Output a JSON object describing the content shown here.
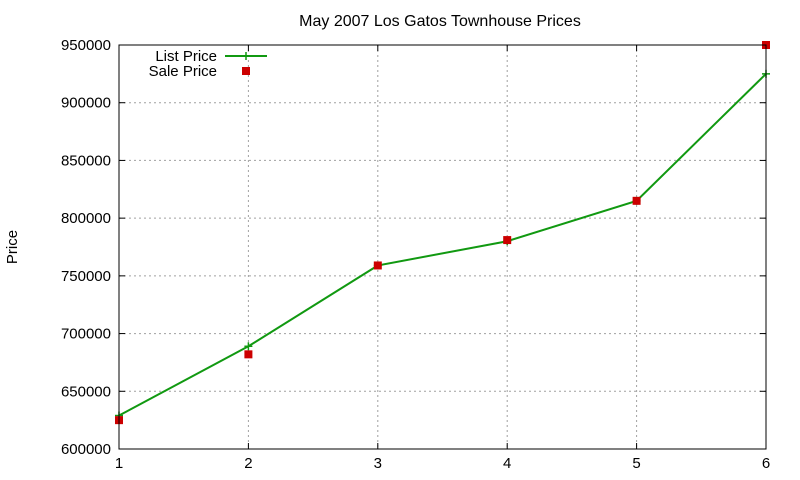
{
  "chart_data": {
    "type": "line",
    "title": "May 2007 Los Gatos Townhouse Prices",
    "xlabel": "",
    "ylabel": "Price",
    "x": [
      1,
      2,
      3,
      4,
      5,
      6
    ],
    "xlim": [
      1,
      6
    ],
    "ylim": [
      600000,
      950000
    ],
    "x_ticks": [
      "1",
      "2",
      "3",
      "4",
      "5",
      "6"
    ],
    "y_ticks": [
      "600000",
      "650000",
      "700000",
      "750000",
      "800000",
      "850000",
      "900000",
      "950000"
    ],
    "grid": true,
    "legend_position": "top-left",
    "series": [
      {
        "name": "List Price",
        "style": "line-plus-markers",
        "color": "#119911",
        "values": [
          629000,
          689000,
          759000,
          780000,
          815000,
          925000
        ]
      },
      {
        "name": "Sale Price",
        "style": "square-markers",
        "color": "#cc0000",
        "values": [
          625000,
          682000,
          759000,
          781000,
          815000,
          950000
        ]
      }
    ]
  }
}
